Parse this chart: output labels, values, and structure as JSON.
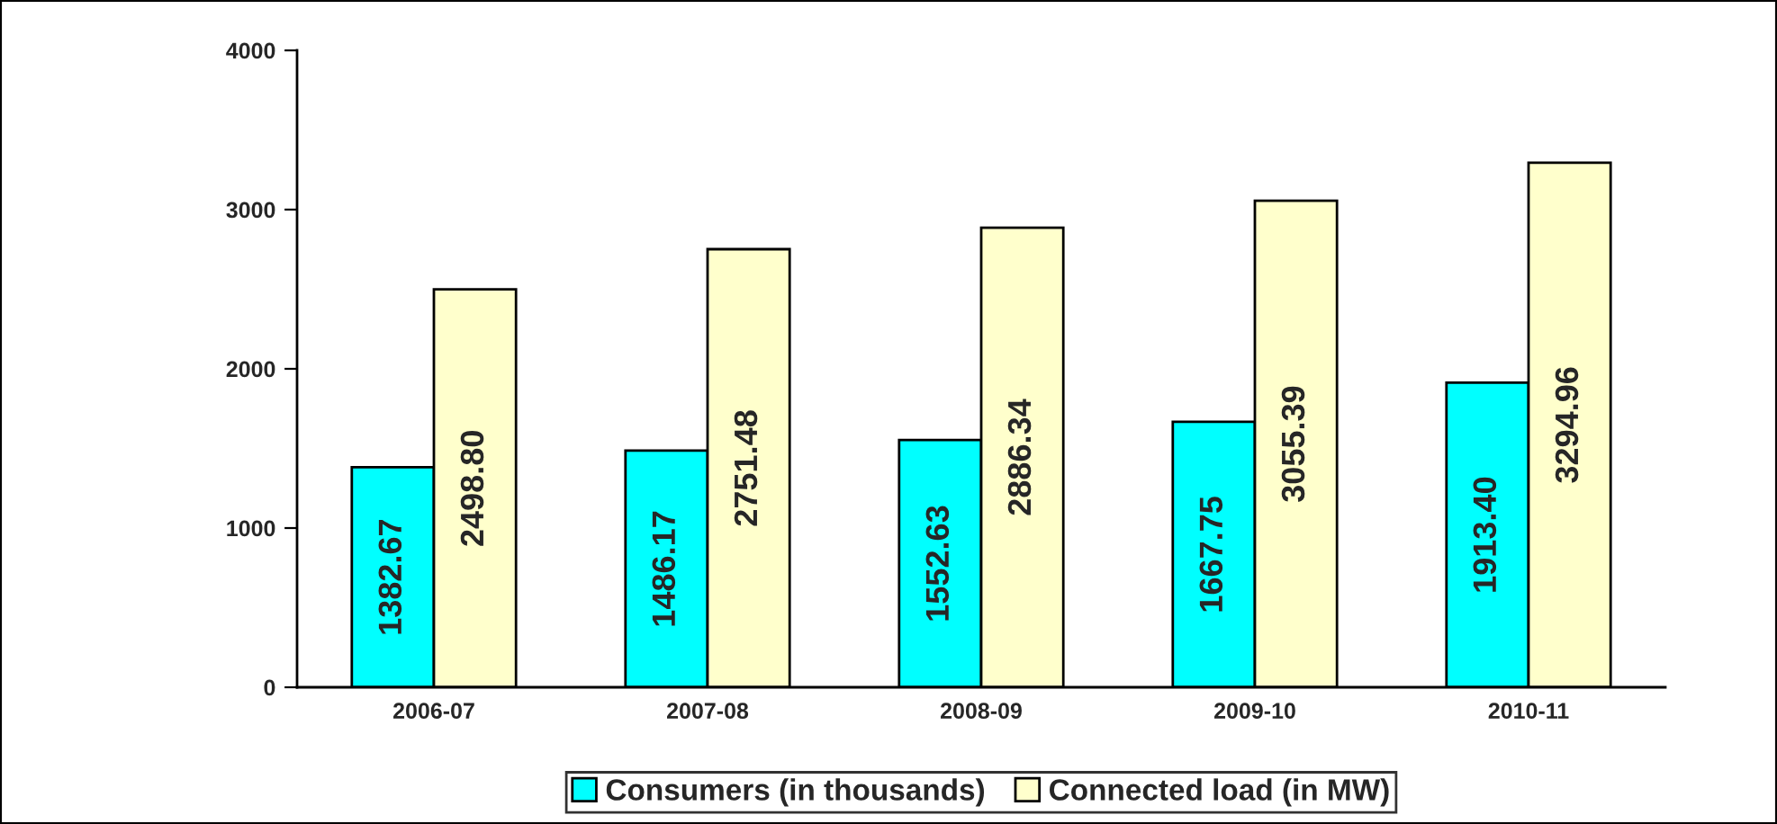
{
  "chart_data": {
    "type": "bar",
    "categories": [
      "2006-07",
      "2007-08",
      "2008-09",
      "2009-10",
      "2010-11"
    ],
    "series": [
      {
        "name": "Consumers (in thousands)",
        "color": "#00ffff",
        "values": [
          1382.67,
          1486.17,
          1552.63,
          1667.75,
          1913.4
        ],
        "value_labels": [
          "1382.67",
          "1486.17",
          "1552.63",
          "1667.75",
          "1913.40"
        ]
      },
      {
        "name": "Connected load (in MW)",
        "color": "#ffffcc",
        "values": [
          2498.8,
          2751.48,
          2886.34,
          3055.39,
          3294.96
        ],
        "value_labels": [
          "2498.80",
          "2751.48",
          "2886.34",
          "3055.39",
          "3294.96"
        ]
      }
    ],
    "ylim": [
      0,
      4000
    ],
    "yticks": [
      0,
      1000,
      2000,
      3000,
      4000
    ],
    "grid": false,
    "legend": "bottom"
  }
}
